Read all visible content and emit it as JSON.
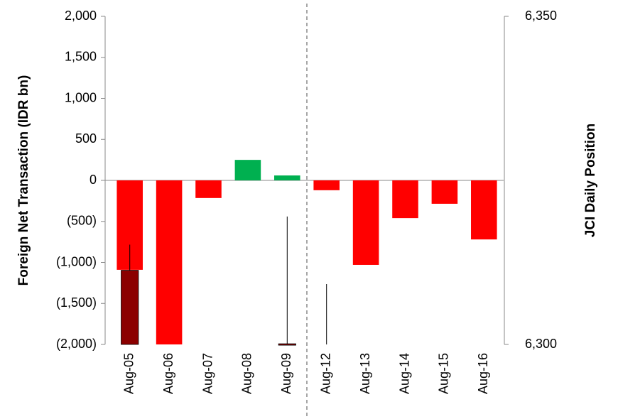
{
  "chart_data": {
    "type": "bar",
    "y_label": "Foreign Net Transaction (IDR bn)",
    "y2_label": "JCI Daily Position",
    "categories": [
      "Aug-05",
      "Aug-06",
      "Aug-07",
      "Aug-08",
      "Aug-09",
      "Aug-12",
      "Aug-13",
      "Aug-14",
      "Aug-15",
      "Aug-16"
    ],
    "values": [
      -1090,
      -2000,
      -215,
      250,
      60,
      -120,
      -1030,
      -460,
      -285,
      -720
    ],
    "positive_color": "#00b050",
    "negative_color": "#ff0000",
    "ylim": [
      -2000,
      2000
    ],
    "yticks": [
      {
        "value": 2000,
        "label": "2,000"
      },
      {
        "value": 1500,
        "label": "1,500"
      },
      {
        "value": 1000,
        "label": "1,000"
      },
      500,
      0,
      {
        "value": -500,
        "label": "(500)"
      },
      {
        "value": -1000,
        "label": "(1,000)"
      },
      {
        "value": -1500,
        "label": "(1,500)"
      },
      {
        "value": -2000,
        "label": "(2,000)"
      }
    ],
    "y2lim": [
      6300,
      6350
    ],
    "y2ticks": [
      {
        "value": 6350,
        "label": "6,350"
      },
      {
        "value": 6300,
        "label": "6,300"
      }
    ],
    "candles": {
      "axis": "y2",
      "color": "#8b0000",
      "open": [
        6311.3,
        null,
        null,
        null,
        6300.1,
        null,
        null,
        null,
        null,
        null
      ],
      "close": [
        6300,
        null,
        null,
        null,
        6300,
        null,
        null,
        null,
        null,
        null
      ],
      "high": [
        6315.2,
        null,
        null,
        null,
        6319.5,
        6309.2,
        null,
        null,
        null,
        null
      ],
      "low": [
        6300,
        null,
        null,
        null,
        6300,
        6300,
        null,
        null,
        null,
        null
      ]
    }
  }
}
